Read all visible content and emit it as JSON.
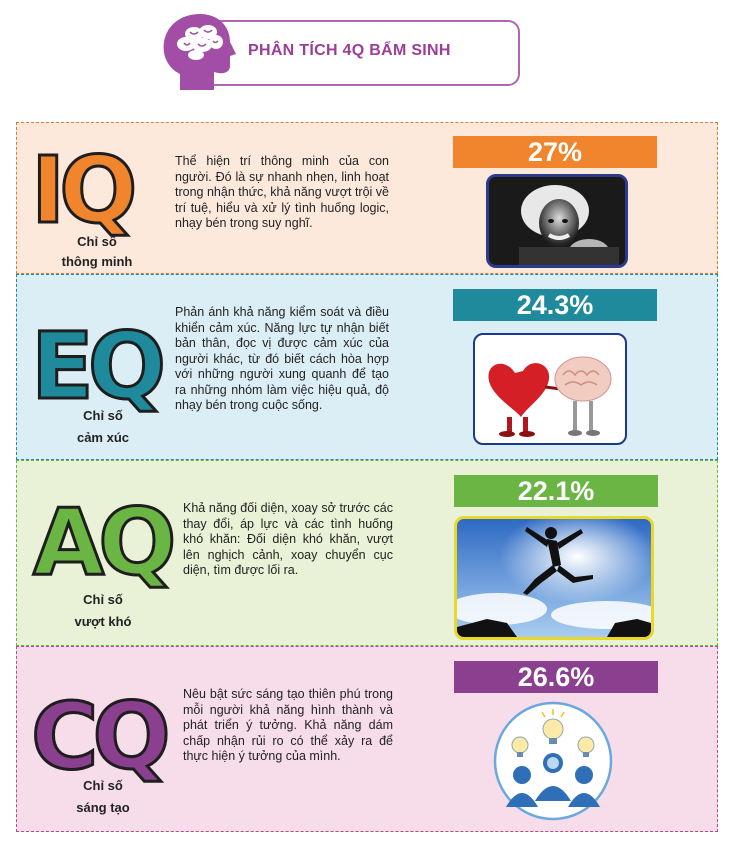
{
  "header": {
    "title": "PHÂN TÍCH 4Q BẨM SINH"
  },
  "sections": [
    {
      "code": "IQ",
      "label_line1": "Chỉ số",
      "label_line2": "thông minh",
      "description": "Thể hiện trí thông minh của con người. Đó là sự nhanh nhẹn, linh hoạt trong nhận thức, khả năng vượt trội về trí tuệ, hiểu và xử lý tình huống logic, nhạy bén trong suy nghĩ.",
      "percent": "27%",
      "bar_color": "#f0852d",
      "bg": "#fde9dc",
      "border": "#e07a3c"
    },
    {
      "code": "EQ",
      "label_line1": "Chỉ số",
      "label_line2": "cảm xúc",
      "description": "Phản ánh khả năng kiểm soát và điều khiển cảm xúc. Năng lực tự nhận biết bản thân, đọc vị được cảm xúc của người khác, từ đó biết cách hòa hợp với những người xung quanh để tạo ra những nhóm làm việc hiệu quả, độ nhạy bén trong cuộc sống.",
      "percent": "24.3%",
      "bar_color": "#1f8a9c",
      "bg": "#dbeef6",
      "border": "#1f8a9c"
    },
    {
      "code": "AQ",
      "label_line1": "Chỉ số",
      "label_line2": "vượt khó",
      "description": "Khả năng đối diện, xoay sở trước các thay đổi, áp lực và các tình huống khó khăn: Đối diện khó khăn, vượt lên nghịch cảnh, xoay chuyển cục diện, tìm được lối ra.",
      "percent": "22.1%",
      "bar_color": "#6ab543",
      "bg": "#e9f1d6",
      "border": "#6ab543"
    },
    {
      "code": "CQ",
      "label_line1": "Chỉ số",
      "label_line2": "sáng tạo",
      "description": "Nêu bật sức sáng tạo thiên phú trong mỗi người khả năng hình thành và phát triển ý tưởng. Khả năng dám chấp nhận rủi ro có thể xảy ra để thực hiện ý tưởng của mình.",
      "percent": "26.6%",
      "bar_color": "#8a3f8f",
      "bg": "#f7dcea",
      "border": "#b0508f"
    }
  ],
  "icons": [
    "head-brain-icon",
    "einstein-photo",
    "heart-brain-photo",
    "jumping-man-photo",
    "lightbulb-team-icon"
  ]
}
